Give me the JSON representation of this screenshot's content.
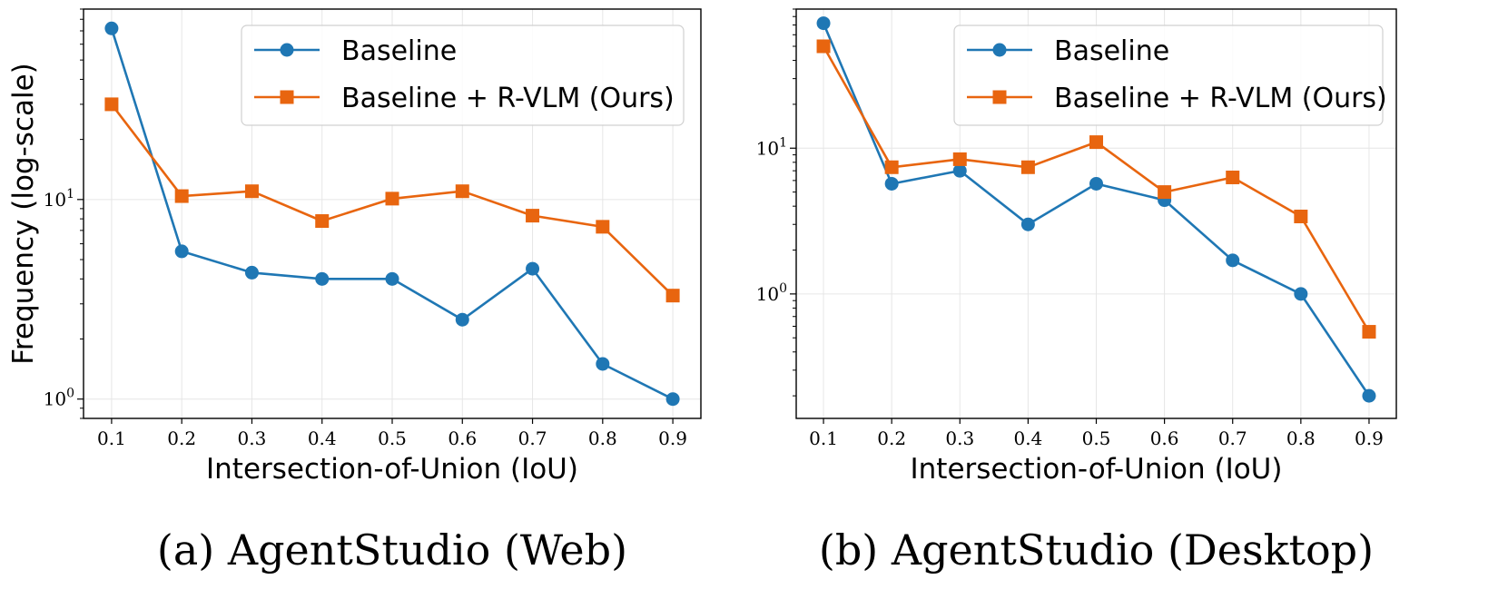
{
  "chart_data": [
    {
      "type": "line",
      "caption": "(a) AgentStudio (Web)",
      "xlabel": "Intersection-of-Union (IoU)",
      "ylabel": "Frequency (log-scale)",
      "x": [
        0.1,
        0.2,
        0.3,
        0.4,
        0.5,
        0.6,
        0.7,
        0.8,
        0.9
      ],
      "xticks": [
        "0.1",
        "0.2",
        "0.3",
        "0.4",
        "0.5",
        "0.6",
        "0.7",
        "0.8",
        "0.9"
      ],
      "yscale": "log",
      "ylim": [
        0.8,
        90
      ],
      "yticks": [
        {
          "value": 1,
          "base": "10",
          "exp": "0"
        },
        {
          "value": 10,
          "base": "10",
          "exp": "1"
        }
      ],
      "grid": true,
      "legend_position": "top-right",
      "series": [
        {
          "name": "Baseline",
          "color": "#1f77b4",
          "marker": "circle",
          "values": [
            72,
            5.5,
            4.3,
            4.0,
            4.0,
            2.5,
            4.5,
            1.5,
            1.0
          ]
        },
        {
          "name": "Baseline + R-VLM (Ours)",
          "color": "#e8650f",
          "marker": "square",
          "values": [
            30,
            10.4,
            11.0,
            7.8,
            10.1,
            11.0,
            8.3,
            7.3,
            3.3
          ]
        }
      ]
    },
    {
      "type": "line",
      "caption": "(b) AgentStudio (Desktop)",
      "xlabel": "Intersection-of-Union (IoU)",
      "ylabel": "Frequency (log-scale)",
      "x": [
        0.1,
        0.2,
        0.3,
        0.4,
        0.5,
        0.6,
        0.7,
        0.8,
        0.9
      ],
      "xticks": [
        "0.1",
        "0.2",
        "0.3",
        "0.4",
        "0.5",
        "0.6",
        "0.7",
        "0.8",
        "0.9"
      ],
      "yscale": "log",
      "ylim": [
        0.14,
        90
      ],
      "yticks": [
        {
          "value": 1,
          "base": "10",
          "exp": "0"
        },
        {
          "value": 10,
          "base": "10",
          "exp": "1"
        }
      ],
      "grid": true,
      "legend_position": "top-right",
      "series": [
        {
          "name": "Baseline",
          "color": "#1f77b4",
          "marker": "circle",
          "values": [
            72,
            5.7,
            7.0,
            3.0,
            5.7,
            4.4,
            1.7,
            1.0,
            0.2
          ]
        },
        {
          "name": "Baseline + R-VLM (Ours)",
          "color": "#e8650f",
          "marker": "square",
          "values": [
            50,
            7.4,
            8.4,
            7.4,
            11.0,
            5.0,
            6.3,
            3.4,
            0.55
          ]
        }
      ]
    }
  ]
}
